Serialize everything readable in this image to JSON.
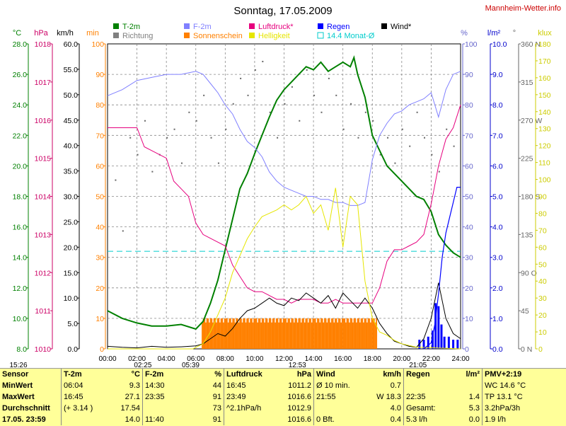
{
  "site": "Mannheim-Wetter.info",
  "chart_data": {
    "type": "line",
    "title": "Sonntag, 17.05.2009",
    "x_ticks": [
      "00:00",
      "02:00",
      "04:00",
      "06:00",
      "08:00",
      "10:00",
      "12:00",
      "14:00",
      "16:00",
      "18:00",
      "20:00",
      "22:00",
      "24:00"
    ],
    "x_range_hours": [
      0,
      24
    ],
    "grid": true,
    "axes": [
      {
        "unit": "°C",
        "color": "#008000",
        "range": [
          8,
          28
        ],
        "ticks": [
          "8.0",
          "10.0",
          "12.0",
          "14.0",
          "16.0",
          "18.0",
          "20.0",
          "22.0",
          "24.0",
          "26.0",
          "28.0"
        ]
      },
      {
        "unit": "hPa",
        "color": "#cc0066",
        "range": [
          1010,
          1018
        ],
        "ticks": [
          "1010",
          "1011",
          "1012",
          "1013",
          "1014",
          "1015",
          "1016",
          "1017",
          "1018"
        ]
      },
      {
        "unit": "km/h",
        "color": "#000000",
        "range": [
          0,
          60
        ],
        "ticks": [
          "0.0",
          "5.0",
          "10.0",
          "15.0",
          "20.0",
          "25.0",
          "30.0",
          "35.0",
          "40.0",
          "45.0",
          "50.0",
          "55.0",
          "60.0"
        ]
      },
      {
        "unit": "min",
        "color": "#ff8000",
        "range": [
          0,
          100
        ],
        "ticks": [
          "0",
          "10",
          "20",
          "30",
          "40",
          "50",
          "60",
          "70",
          "80",
          "90",
          "100"
        ]
      },
      {
        "unit": "%",
        "color": "#6666cc",
        "range": [
          0,
          100
        ],
        "ticks": [
          "0",
          "10",
          "20",
          "30",
          "40",
          "50",
          "60",
          "70",
          "80",
          "90",
          "100"
        ]
      },
      {
        "unit": "l/m²",
        "color": "#0000cc",
        "range": [
          0,
          10
        ],
        "ticks": [
          "0.0",
          "1.0",
          "2.0",
          "3.0",
          "4.0",
          "5.0",
          "6.0",
          "7.0",
          "8.0",
          "9.0",
          "10.0"
        ]
      },
      {
        "unit": "°",
        "color": "#666666",
        "range": [
          0,
          360
        ],
        "ticks": [
          "0 N",
          "45",
          "90 O",
          "135",
          "180 S",
          "225",
          "270 W",
          "315",
          "360 N"
        ]
      },
      {
        "unit": "klux",
        "color": "#cccc00",
        "range": [
          0,
          180
        ],
        "ticks": [
          "0",
          "10",
          "20",
          "30",
          "40",
          "50",
          "60",
          "70",
          "80",
          "90",
          "100",
          "110",
          "120",
          "130",
          "140",
          "150",
          "160",
          "170",
          "180"
        ]
      }
    ],
    "legend": [
      {
        "name": "T-2m",
        "color": "#008000",
        "kind": "line"
      },
      {
        "name": "Richtung",
        "color": "#808080",
        "kind": "box"
      },
      {
        "name": "F-2m",
        "color": "#8080ff",
        "kind": "line"
      },
      {
        "name": "Sonnenschein",
        "color": "#ff8000",
        "kind": "box"
      },
      {
        "name": "Luftdruck*",
        "color": "#e6007e",
        "kind": "box"
      },
      {
        "name": "Helligkeit",
        "color": "#e6e600",
        "kind": "box"
      },
      {
        "name": "Regen",
        "color": "#0000ff",
        "kind": "box"
      },
      {
        "name": "14.4 Monat-Ø",
        "color": "#00cccc",
        "kind": "outline"
      },
      {
        "name": "Wind*",
        "color": "#000000",
        "kind": "box"
      }
    ],
    "monthly_avg_temp": 14.4,
    "series": [
      {
        "name": "T-2m",
        "axis": 0,
        "color": "#008000",
        "width": 2,
        "x": [
          0,
          1,
          2,
          3,
          4,
          5,
          6,
          6.5,
          7,
          7.5,
          8,
          8.5,
          9,
          9.5,
          10,
          10.5,
          11,
          11.5,
          12,
          12.5,
          13,
          13.5,
          14,
          14.5,
          15,
          15.5,
          16,
          16.5,
          16.75,
          17,
          17.5,
          18,
          18.5,
          19,
          19.5,
          20,
          20.5,
          21,
          21.5,
          22,
          22.5,
          23,
          23.5,
          24
        ],
        "y": [
          10.5,
          10.0,
          9.7,
          9.5,
          9.5,
          9.6,
          9.3,
          9.8,
          11.0,
          12.5,
          14.5,
          16.5,
          18.5,
          19.5,
          20.8,
          22.0,
          23.2,
          24.3,
          25.0,
          25.5,
          26.0,
          26.5,
          26.3,
          26.8,
          26.2,
          26.5,
          26.8,
          26.5,
          27.1,
          26.0,
          24.5,
          22.0,
          21.0,
          20.0,
          19.5,
          19.0,
          18.5,
          18.0,
          17.8,
          17.0,
          15.5,
          14.8,
          14.3,
          14.0
        ]
      },
      {
        "name": "F-2m",
        "axis": 4,
        "color": "#8080ff",
        "width": 1,
        "x": [
          0,
          1,
          2,
          3,
          4,
          5,
          6,
          6.5,
          7,
          7.5,
          8,
          8.5,
          9,
          9.5,
          10,
          10.5,
          11,
          11.5,
          12,
          12.5,
          13,
          13.5,
          14,
          14.5,
          15,
          15.5,
          16,
          16.5,
          17,
          17.5,
          18,
          18.5,
          19,
          19.5,
          20,
          20.5,
          21,
          21.5,
          22,
          22.5,
          23,
          23.5,
          24
        ],
        "y": [
          83,
          85,
          88,
          89,
          90,
          90,
          91,
          90,
          87,
          84,
          80,
          77,
          72,
          68,
          66,
          63,
          58,
          55,
          53,
          52,
          51,
          50,
          50,
          49,
          49,
          48,
          48,
          47,
          47,
          48,
          62,
          70,
          74,
          77,
          78,
          80,
          81,
          82,
          84,
          76,
          85,
          90,
          91
        ]
      },
      {
        "name": "Luftdruck*",
        "axis": 1,
        "color": "#e6007e",
        "width": 1,
        "x": [
          0,
          0.5,
          1,
          1.5,
          2,
          2.5,
          3,
          3.5,
          4,
          4.5,
          5,
          5.5,
          6,
          6.5,
          7,
          7.5,
          8,
          8.5,
          9,
          9.5,
          10,
          10.5,
          11,
          11.5,
          12,
          12.5,
          13,
          13.5,
          14,
          14.5,
          15,
          15.5,
          16,
          16.5,
          17,
          17.5,
          18,
          18.5,
          19,
          19.5,
          20,
          20.5,
          21,
          21.5,
          22,
          22.5,
          23,
          23.5,
          24
        ],
        "y": [
          1015.8,
          1015.8,
          1015.8,
          1015.8,
          1015.8,
          1015.3,
          1015.2,
          1015.1,
          1015.0,
          1014.4,
          1014.2,
          1014.0,
          1013.3,
          1013.0,
          1012.9,
          1012.8,
          1012.7,
          1012.2,
          1011.9,
          1011.6,
          1011.5,
          1011.5,
          1011.4,
          1011.3,
          1011.3,
          1011.2,
          1011.3,
          1011.3,
          1011.3,
          1011.2,
          1011.2,
          1011.3,
          1011.2,
          1011.2,
          1011.2,
          1011.2,
          1011.2,
          1011.6,
          1012.3,
          1012.6,
          1012.6,
          1012.7,
          1012.8,
          1013.0,
          1013.8,
          1014.8,
          1015.5,
          1015.8,
          1016.4
        ]
      },
      {
        "name": "Wind*",
        "axis": 2,
        "color": "#000000",
        "width": 1,
        "x": [
          0,
          1,
          2,
          3,
          4,
          5,
          6,
          6.5,
          7,
          7.5,
          8,
          8.5,
          9,
          9.5,
          10,
          10.5,
          11,
          11.5,
          12,
          12.5,
          13,
          13.5,
          14,
          14.5,
          15,
          15.5,
          16,
          16.5,
          17,
          17.5,
          18,
          18.5,
          19,
          19.5,
          20,
          20.5,
          21,
          21.5,
          22,
          22.5,
          23,
          23.5,
          24
        ],
        "y": [
          0.5,
          0.3,
          0.2,
          0.5,
          0.3,
          0.4,
          0.6,
          1.0,
          2.0,
          3.0,
          2.5,
          4.0,
          6.0,
          7.5,
          8.0,
          9.0,
          10.0,
          9.0,
          8.5,
          10.0,
          9.5,
          11.0,
          10.0,
          9.0,
          10.5,
          8.0,
          11.0,
          9.5,
          8.0,
          10.0,
          8.0,
          5.0,
          3.0,
          1.5,
          1.0,
          0.5,
          0.3,
          2.0,
          6.0,
          13.0,
          6.0,
          3.0,
          2.0
        ]
      },
      {
        "name": "Helligkeit",
        "axis": 7,
        "color": "#e6e600",
        "width": 1,
        "x": [
          0,
          5.8,
          6.5,
          7,
          7.5,
          8,
          8.5,
          9,
          9.5,
          10,
          10.5,
          11,
          11.5,
          12,
          12.5,
          13,
          13.5,
          14,
          14.5,
          15,
          15.5,
          16,
          16.5,
          17,
          17.5,
          18,
          18.5,
          19,
          19.5,
          20,
          21,
          24
        ],
        "y": [
          0,
          0,
          3,
          10,
          20,
          30,
          45,
          55,
          65,
          72,
          78,
          80,
          82,
          85,
          82,
          85,
          90,
          80,
          85,
          70,
          95,
          60,
          90,
          85,
          40,
          18,
          10,
          8,
          5,
          3,
          1,
          0
        ]
      }
    ],
    "sunshine": {
      "axis": 3,
      "unit": "min",
      "color": "#ff8000",
      "start_h": 6.4,
      "end_h": 18.3,
      "level": 10
    },
    "rain": {
      "axis": 5,
      "unit": "l/m²",
      "color": "#0000ff",
      "cum_x": [
        21.5,
        22,
        22.25,
        22.5,
        22.75,
        23,
        23.25,
        23.5,
        23.75,
        24
      ],
      "cum_y": [
        0,
        0.2,
        0.8,
        1.8,
        3.0,
        3.8,
        4.3,
        4.8,
        5.3,
        5.3
      ],
      "bars_x": [
        21.2,
        21.5,
        21.8,
        22.1,
        22.3,
        22.5,
        22.7,
        22.9,
        23.2,
        23.5,
        23.8
      ],
      "bars_y": [
        0.3,
        0.3,
        0.4,
        0.6,
        1.5,
        1.4,
        0.8,
        0.4,
        0.4,
        0.3,
        0.3
      ]
    },
    "direction": {
      "axis": 6,
      "unit": "°",
      "x": [
        0.5,
        1,
        1.5,
        2,
        2.5,
        3,
        3.5,
        4,
        4.5,
        5,
        5.5,
        6,
        6.5,
        7,
        7.5,
        8,
        8.5,
        9,
        9.5,
        10,
        10.5,
        11,
        11.5,
        12,
        12.5,
        13,
        13.5,
        14,
        14.5,
        15,
        15.5,
        16,
        16.5,
        17,
        17.5,
        18,
        18.5,
        19,
        19.5,
        20,
        20.5,
        21,
        21.5,
        22,
        22.5,
        23,
        23.5
      ],
      "y": [
        200,
        140,
        250,
        230,
        270,
        210,
        230,
        250,
        260,
        220,
        280,
        270,
        300,
        250,
        220,
        260,
        290,
        320,
        300,
        330,
        340,
        280,
        250,
        290,
        310,
        270,
        330,
        300,
        280,
        320,
        300,
        260,
        290,
        250,
        280,
        270,
        230,
        250,
        220,
        260,
        240,
        280,
        250,
        230,
        210,
        260,
        240
      ]
    },
    "markers": [
      {
        "label": "15:26",
        "pos": "left"
      },
      {
        "label": "02:25",
        "pos": 2.4
      },
      {
        "label": "05:39",
        "pos": 5.65
      },
      {
        "label": "12:53",
        "pos": 12.9
      },
      {
        "label": "21:05",
        "pos": 21.1
      }
    ]
  },
  "table": {
    "headers": [
      "Sensor",
      "T-2m",
      "°C",
      "F-2m",
      "%",
      "Luftdruck",
      "hPa",
      "Wind",
      "km/h",
      "Regen",
      "l/m²",
      "PMV+2:19"
    ],
    "rows": [
      [
        "MinWert",
        "06:04",
        "9.3",
        "14:30",
        "44",
        "16:45",
        "1011.2",
        "Ø 10 min.",
        "0.7",
        "",
        "",
        "WC 14.6 °C"
      ],
      [
        "MaxWert",
        "16:45",
        "27.1",
        "23:35",
        "91",
        "23:49",
        "1016.6",
        "21:55",
        "W 18.3",
        "22:35",
        "1.4",
        "TP 13.1 °C"
      ],
      [
        "Durchschnitt",
        "(+ 3.14 )",
        "17.54",
        "",
        "73",
        "^2.1hPa/h",
        "1012.9",
        "",
        "4.0",
        "Gesamt:",
        "5.3",
        "3.2hPa/3h"
      ],
      [
        "17.05. 23:59",
        "",
        "14.0",
        "11:40",
        "91",
        "",
        "1016.6",
        "0 Bft.",
        "0.4",
        "5.3 l/h",
        "0.0",
        "1.9 l/h"
      ]
    ]
  }
}
